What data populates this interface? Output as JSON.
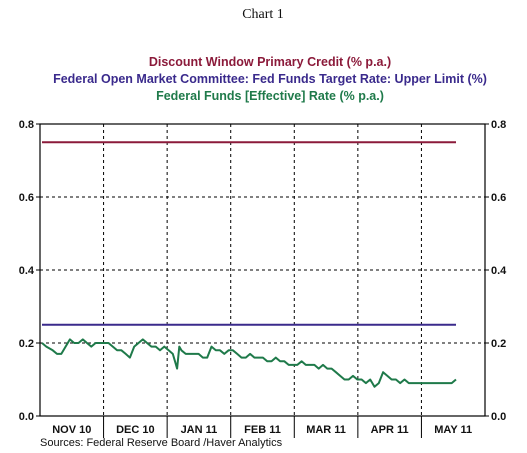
{
  "chart_data": {
    "type": "line",
    "title": "Chart 1",
    "source": "Sources:  Federal Reserve Board /Haver Analytics",
    "ylim": [
      0,
      0.8
    ],
    "yticks": [
      "0.0",
      "0.2",
      "0.4",
      "0.6",
      "0.8"
    ],
    "grid": true,
    "legend_placement": "top-center",
    "x_months": [
      "NOV 10",
      "DEC 10",
      "JAN 11",
      "FEB 11",
      "MAR 11",
      "APR 11",
      "MAY 11"
    ],
    "x_range": [
      0,
      193
    ],
    "series": [
      {
        "name": "Discount Window Primary Credit (% p.a.)",
        "color": "#8b1a3a",
        "x": [
          0,
          193
        ],
        "values": [
          0.75,
          0.75
        ]
      },
      {
        "name": "Federal Open Market Committee: Fed Funds Target Rate: Upper Limit (%)",
        "color": "#3a2a8c",
        "x": [
          0,
          193
        ],
        "values": [
          0.25,
          0.25
        ]
      },
      {
        "name": "Federal Funds [Effective] Rate (% p.a.)",
        "color": "#1f7a4a",
        "x": [
          0,
          2,
          5,
          7,
          9,
          11,
          13,
          15,
          17,
          19,
          21,
          23,
          25,
          27,
          29,
          31,
          33,
          35,
          37,
          39,
          41,
          43,
          45,
          47,
          49,
          51,
          53,
          55,
          57,
          59,
          61,
          62,
          63,
          64,
          65,
          67,
          69,
          71,
          73,
          75,
          77,
          79,
          81,
          83,
          85,
          87,
          89,
          91,
          93,
          95,
          97,
          99,
          101,
          103,
          105,
          107,
          109,
          111,
          113,
          115,
          117,
          119,
          121,
          123,
          125,
          127,
          129,
          131,
          133,
          135,
          137,
          139,
          141,
          143,
          145,
          147,
          149,
          151,
          153,
          155,
          157,
          159,
          161,
          163,
          165,
          167,
          169,
          171,
          173,
          175,
          177,
          179,
          181,
          183,
          185,
          187,
          189,
          191,
          193
        ],
        "values": [
          0.2,
          0.19,
          0.18,
          0.17,
          0.17,
          0.19,
          0.21,
          0.2,
          0.2,
          0.21,
          0.2,
          0.19,
          0.2,
          0.2,
          0.2,
          0.2,
          0.19,
          0.18,
          0.18,
          0.17,
          0.16,
          0.19,
          0.2,
          0.21,
          0.2,
          0.19,
          0.19,
          0.18,
          0.19,
          0.18,
          0.17,
          0.15,
          0.13,
          0.19,
          0.18,
          0.17,
          0.17,
          0.17,
          0.17,
          0.16,
          0.16,
          0.19,
          0.18,
          0.18,
          0.17,
          0.18,
          0.18,
          0.17,
          0.16,
          0.16,
          0.17,
          0.16,
          0.16,
          0.16,
          0.15,
          0.15,
          0.16,
          0.15,
          0.15,
          0.14,
          0.14,
          0.14,
          0.15,
          0.14,
          0.14,
          0.14,
          0.13,
          0.14,
          0.13,
          0.13,
          0.12,
          0.11,
          0.1,
          0.1,
          0.11,
          0.1,
          0.1,
          0.09,
          0.1,
          0.08,
          0.09,
          0.12,
          0.11,
          0.1,
          0.1,
          0.09,
          0.1,
          0.09,
          0.09,
          0.09,
          0.09,
          0.09,
          0.09,
          0.09,
          0.09,
          0.09,
          0.09,
          0.09,
          0.1
        ]
      }
    ]
  }
}
